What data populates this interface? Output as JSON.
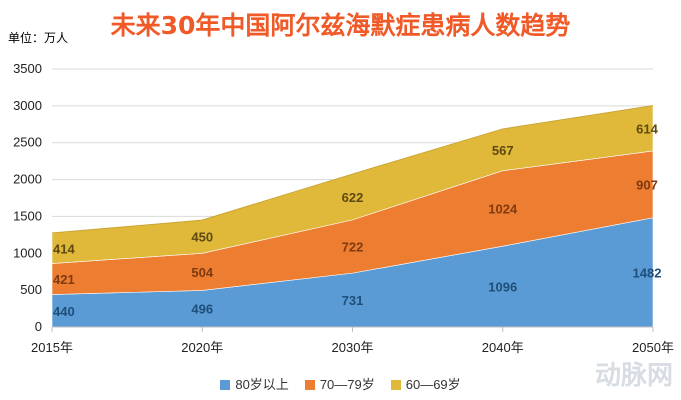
{
  "page": {
    "unit_label": "单位：万人",
    "watermark": "动脉网",
    "title_color": "#f05a28"
  },
  "chart_data": {
    "type": "area",
    "stacked": true,
    "title": "未来30年中国阿尔兹海默症患病人数趋势",
    "categories": [
      "2015年",
      "2020年",
      "2030年",
      "2040年",
      "2050年"
    ],
    "ylim": [
      0,
      3500
    ],
    "yticks": [
      0,
      500,
      1000,
      1500,
      2000,
      2500,
      3000,
      3500
    ],
    "grid": true,
    "legend_position": "bottom",
    "series": [
      {
        "name": "80岁以上",
        "values": [
          440,
          496,
          731,
          1096,
          1482
        ],
        "color": "#5b9bd5",
        "label_color": "#1f4e79"
      },
      {
        "name": "70—79岁",
        "values": [
          421,
          504,
          722,
          1024,
          907
        ],
        "color": "#ed7d31",
        "label_color": "#7f3a0f"
      },
      {
        "name": "60—69岁",
        "values": [
          414,
          450,
          622,
          567,
          614
        ],
        "color": "#e0b83a",
        "label_color": "#5e4a10"
      }
    ]
  }
}
